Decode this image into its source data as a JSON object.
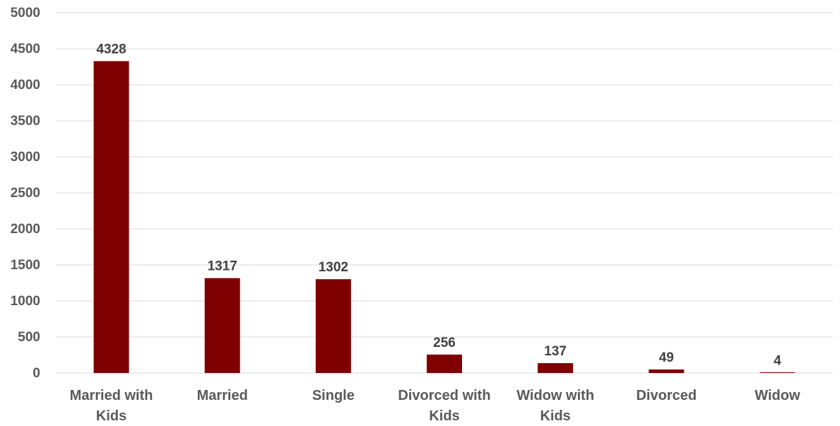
{
  "chart_data": {
    "type": "bar",
    "categories": [
      [
        "Married with",
        "Kids"
      ],
      [
        "Married"
      ],
      [
        "Single"
      ],
      [
        "Divorced with",
        "Kids"
      ],
      [
        "Widow with",
        "Kids"
      ],
      [
        "Divorced"
      ],
      [
        "Widow"
      ]
    ],
    "values": [
      4328,
      1317,
      1302,
      256,
      137,
      49,
      4
    ],
    "data_labels": [
      "4328",
      "1317",
      "1302",
      "256",
      "137",
      "49",
      "4"
    ],
    "y_ticks": [
      "0",
      "500",
      "1000",
      "1500",
      "2000",
      "2500",
      "3000",
      "3500",
      "4000",
      "4500",
      "5000"
    ],
    "ylim": [
      0,
      5000
    ],
    "title": "",
    "xlabel": "",
    "ylabel": "",
    "grid": true,
    "legend": "none",
    "colors": {
      "bar": "#7f0000",
      "grid": "#d9d9d9",
      "axis_text": "#595959",
      "label_text": "#404040"
    }
  }
}
